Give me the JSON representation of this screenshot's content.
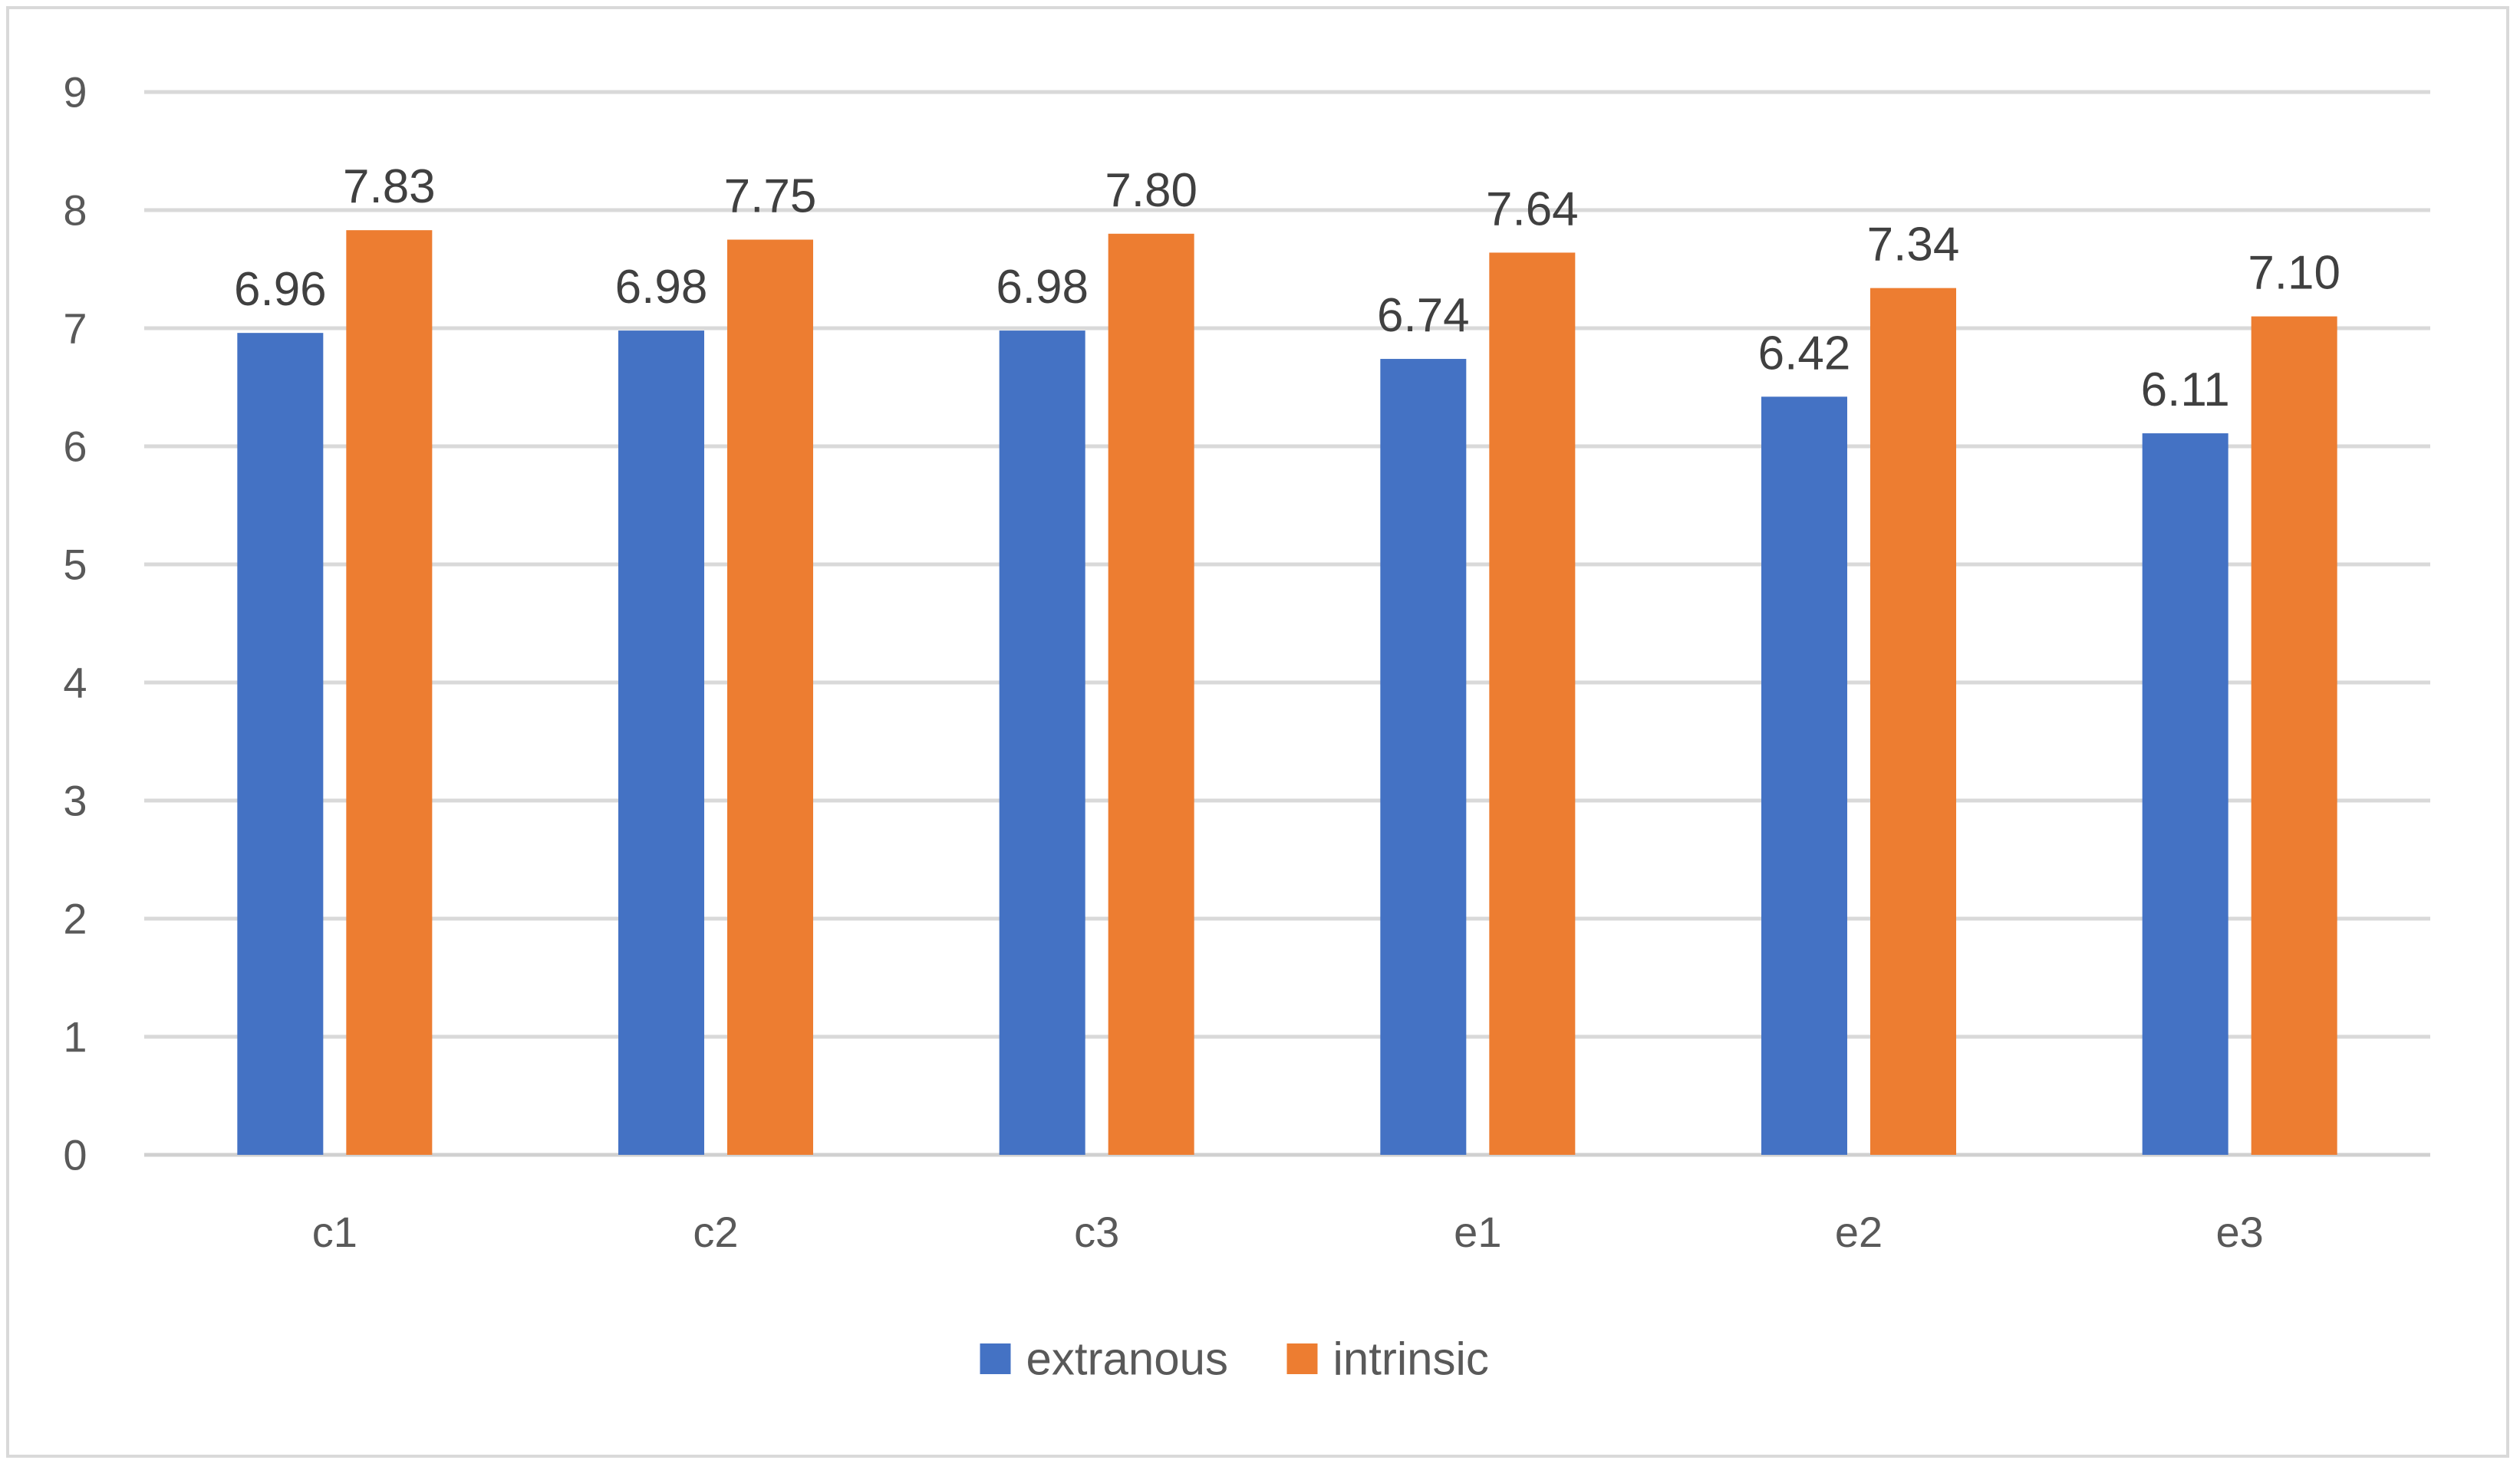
{
  "chart_data": {
    "type": "bar",
    "title": "",
    "xlabel": "",
    "ylabel": "",
    "categories": [
      "c1",
      "c2",
      "c3",
      "e1",
      "e2",
      "e3"
    ],
    "series": [
      {
        "name": "extranous",
        "color": "#4472c4",
        "values": [
          6.96,
          6.98,
          6.98,
          6.74,
          6.42,
          6.11
        ],
        "labels": [
          "6.96",
          "6.98",
          "6.98",
          "6.74",
          "6.42",
          "6.11"
        ]
      },
      {
        "name": "intrinsic",
        "color": "#ed7d31",
        "values": [
          7.83,
          7.75,
          7.8,
          7.64,
          7.34,
          7.1
        ],
        "labels": [
          "7.83",
          "7.75",
          "7.80",
          "7.64",
          "7.34",
          "7.10"
        ]
      }
    ],
    "ylim": [
      0,
      9
    ],
    "yticks": [
      "0",
      "1",
      "2",
      "3",
      "4",
      "5",
      "6",
      "7",
      "8",
      "9"
    ],
    "grid": true,
    "legend_position": "bottom-center"
  }
}
